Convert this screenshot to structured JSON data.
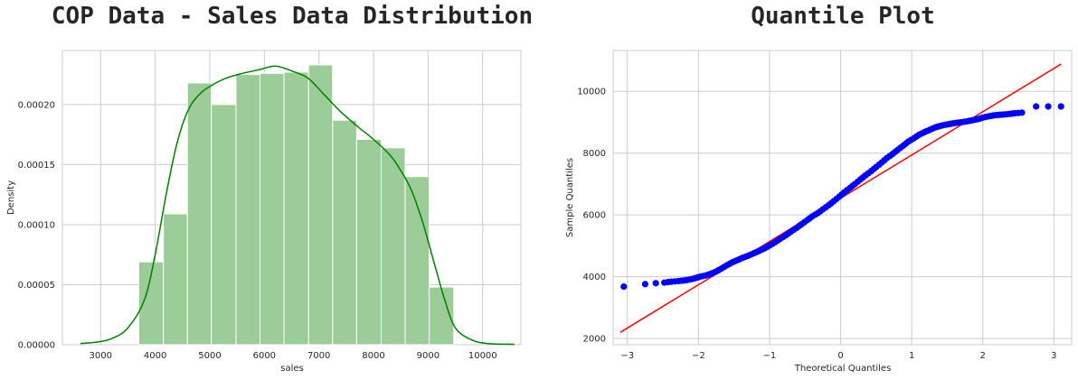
{
  "chart_data": [
    {
      "type": "bar",
      "title": "COP Data - Sales Data Distribution",
      "xlabel": "sales",
      "ylabel": "Density",
      "xlim": [
        2300,
        10700
      ],
      "ylim": [
        0,
        0.000245
      ],
      "xticks": [
        3000,
        4000,
        5000,
        6000,
        7000,
        8000,
        9000,
        10000
      ],
      "xtick_labels": [
        "3000",
        "4000",
        "5000",
        "6000",
        "7000",
        "8000",
        "9000",
        "10000"
      ],
      "yticks": [
        0,
        5e-05,
        0.0001,
        0.00015,
        0.0002
      ],
      "ytick_labels": [
        "0.00000",
        "0.00005",
        "0.00010",
        "0.00015",
        "0.00020"
      ],
      "grid": true,
      "bar_color": "#9ccc98",
      "bar_edge": "#ffffff",
      "bins": [
        {
          "x0": 3700,
          "x1": 4150,
          "value": 6.9e-05
        },
        {
          "x0": 4150,
          "x1": 4590,
          "value": 0.000109
        },
        {
          "x0": 4590,
          "x1": 5030,
          "value": 0.000218
        },
        {
          "x0": 5030,
          "x1": 5480,
          "value": 0.0002
        },
        {
          "x0": 5480,
          "x1": 5920,
          "value": 0.000225
        },
        {
          "x0": 5920,
          "x1": 6360,
          "value": 0.000226
        },
        {
          "x0": 6360,
          "x1": 6810,
          "value": 0.000227
        },
        {
          "x0": 6810,
          "x1": 7250,
          "value": 0.000233
        },
        {
          "x0": 7250,
          "x1": 7690,
          "value": 0.000187
        },
        {
          "x0": 7690,
          "x1": 8140,
          "value": 0.000171
        },
        {
          "x0": 8140,
          "x1": 8580,
          "value": 0.000164
        },
        {
          "x0": 8580,
          "x1": 9020,
          "value": 0.00014
        },
        {
          "x0": 9020,
          "x1": 9470,
          "value": 4.8e-05
        }
      ],
      "kde": {
        "color": "#008000",
        "x": [
          2630,
          2900,
          3200,
          3500,
          3800,
          4000,
          4200,
          4400,
          4600,
          4800,
          5000,
          5300,
          5600,
          5900,
          6200,
          6500,
          6800,
          7100,
          7400,
          7700,
          8000,
          8300,
          8500,
          8700,
          8900,
          9100,
          9300,
          9500,
          9800,
          10100,
          10580
        ],
        "y": [
          1e-06,
          2e-06,
          5e-06,
          1.4e-05,
          3.7e-05,
          7.5e-05,
          0.000125,
          0.000168,
          0.000195,
          0.000208,
          0.000215,
          0.000222,
          0.000226,
          0.000229,
          0.000232,
          0.000228,
          0.000222,
          0.000208,
          0.000194,
          0.000182,
          0.000171,
          0.000158,
          0.000145,
          0.000128,
          0.000102,
          7e-05,
          3.8e-05,
          1.4e-05,
          4e-06,
          1e-06,
          4e-07
        ]
      }
    },
    {
      "type": "scatter",
      "title": "Quantile Plot",
      "xlabel": "Theoretical Quantiles",
      "ylabel": "Sample Quantiles",
      "xlim": [
        -3.2,
        3.25
      ],
      "ylim": [
        1800,
        11320
      ],
      "xticks": [
        -3,
        -2,
        -1,
        0,
        1,
        2,
        3
      ],
      "xtick_labels": [
        "−3",
        "−2",
        "−1",
        "0",
        "1",
        "2",
        "3"
      ],
      "yticks": [
        2000,
        4000,
        6000,
        8000,
        10000
      ],
      "ytick_labels": [
        "2000",
        "4000",
        "6000",
        "8000",
        "10000"
      ],
      "grid": true,
      "point_color": "#0000ff",
      "line_color": "#ff0000",
      "reference_line": {
        "x": [
          -3.1,
          3.1
        ],
        "y": [
          2200,
          10880
        ]
      },
      "points": {
        "x": [
          -3.05,
          -2.75,
          -2.6,
          -2.48,
          -2.38,
          -2.28,
          -2.2,
          -2.12,
          -2.05,
          -1.98,
          -1.9,
          -1.82,
          -1.75,
          -1.68,
          -1.6,
          -1.52,
          -1.45,
          -1.38,
          -1.3,
          -1.22,
          -1.15,
          -1.07,
          -1.0,
          -0.92,
          -0.85,
          -0.77,
          -0.7,
          -0.62,
          -0.55,
          -0.47,
          -0.4,
          -0.32,
          -0.25,
          -0.17,
          -0.1,
          -0.02,
          0.05,
          0.13,
          0.2,
          0.28,
          0.35,
          0.43,
          0.5,
          0.58,
          0.65,
          0.73,
          0.8,
          0.88,
          0.95,
          1.03,
          1.1,
          1.18,
          1.25,
          1.33,
          1.4,
          1.48,
          1.55,
          1.63,
          1.7,
          1.78,
          1.85,
          1.93,
          2.0,
          2.08,
          2.15,
          2.23,
          2.3,
          2.38,
          2.45,
          2.55,
          2.75,
          2.92,
          3.1
        ],
        "y": [
          3680,
          3760,
          3790,
          3810,
          3840,
          3860,
          3880,
          3910,
          3950,
          4000,
          4040,
          4100,
          4170,
          4260,
          4370,
          4470,
          4540,
          4610,
          4680,
          4760,
          4830,
          4920,
          5010,
          5120,
          5230,
          5340,
          5460,
          5580,
          5700,
          5830,
          5950,
          6060,
          6180,
          6310,
          6440,
          6590,
          6730,
          6870,
          7000,
          7150,
          7280,
          7420,
          7550,
          7700,
          7840,
          7970,
          8100,
          8240,
          8370,
          8480,
          8590,
          8680,
          8750,
          8830,
          8880,
          8920,
          8950,
          8980,
          9000,
          9030,
          9060,
          9100,
          9150,
          9190,
          9220,
          9240,
          9250,
          9270,
          9290,
          9310,
          9510,
          9510,
          9510
        ]
      }
    }
  ]
}
